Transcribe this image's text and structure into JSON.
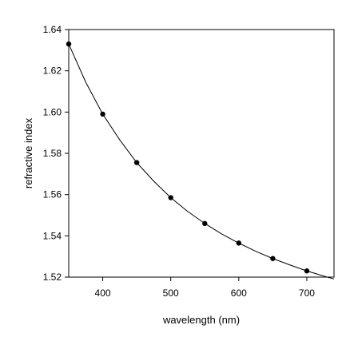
{
  "chart_data": {
    "type": "scatter",
    "title": "",
    "xlabel": "wavelength (nm)",
    "ylabel": "refractive index",
    "xlim": [
      350,
      740
    ],
    "ylim": [
      1.52,
      1.64
    ],
    "x_ticks": [
      400,
      500,
      600,
      700
    ],
    "x_tick_labels": [
      "400",
      "500",
      "600",
      "700"
    ],
    "y_ticks": [
      1.52,
      1.54,
      1.56,
      1.58,
      1.6,
      1.62,
      1.64
    ],
    "y_tick_labels": [
      "1.52",
      "1.54",
      "1.56",
      "1.58",
      "1.60",
      "1.62",
      "1.64"
    ],
    "grid": false,
    "legend": "none",
    "series": [
      {
        "kind": "markers",
        "x": [
          350,
          400,
          450,
          500,
          550,
          600,
          650,
          700
        ],
        "y": [
          1.633,
          1.599,
          1.5755,
          1.5585,
          1.546,
          1.5365,
          1.529,
          1.523
        ],
        "color": "#000000"
      },
      {
        "kind": "fit-line",
        "x": [
          350,
          375,
          400,
          425,
          450,
          475,
          500,
          525,
          550,
          575,
          600,
          625,
          650,
          675,
          700,
          725,
          740
        ],
        "y": [
          1.633,
          1.6145,
          1.599,
          1.5865,
          1.5755,
          1.5665,
          1.5585,
          1.5518,
          1.546,
          1.5409,
          1.5365,
          1.5325,
          1.529,
          1.5259,
          1.523,
          1.5205,
          1.5191
        ],
        "color": "#000000"
      }
    ]
  }
}
